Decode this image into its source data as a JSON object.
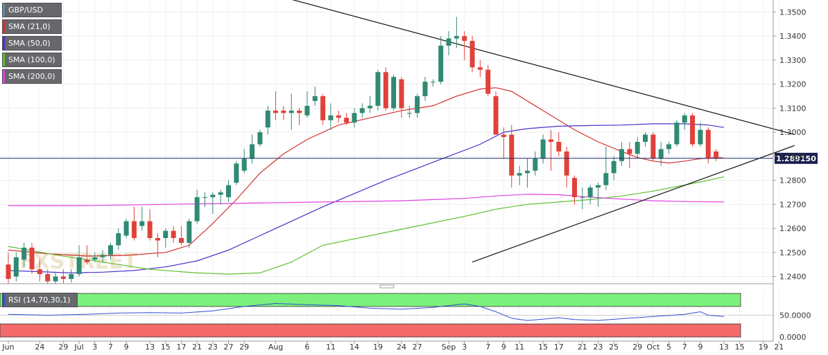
{
  "legend": [
    {
      "label": "GBP/USD",
      "color": "#5b8fa8"
    },
    {
      "label": "SMA (21,0)",
      "color": "#d32f2f"
    },
    {
      "label": "SMA (50,0)",
      "color": "#4a2fc7"
    },
    {
      "label": "SMA (100,0)",
      "color": "#5fbf2f"
    },
    {
      "label": "SMA (200,0)",
      "color": "#e040e0"
    }
  ],
  "rsi_label": "RSI (14,70,30,1)",
  "price_tag": "1.289150",
  "watermark": "FXSTREET",
  "colors": {
    "up": "#2f8a73",
    "down": "#e0413a",
    "rsi_line": "#2f4fd6",
    "overbought": "#7cf07c",
    "oversold": "#f46a6a"
  },
  "chart_data": {
    "type": "candlestick",
    "instrument": "GBP/USD",
    "timeframe": "daily",
    "ylim": [
      1.237,
      1.355
    ],
    "y_ticks": [
      "1.3500",
      "1.3400",
      "1.3300",
      "1.3200",
      "1.3100",
      "1.3000",
      "1.2900",
      "1.2800",
      "1.2700",
      "1.2600",
      "1.2500",
      "1.2400"
    ],
    "y_tick_values": [
      1.35,
      1.34,
      1.33,
      1.32,
      1.31,
      1.3,
      1.29,
      1.28,
      1.27,
      1.26,
      1.25,
      1.24
    ],
    "x_tick_labels": [
      "Jun",
      "24",
      "29",
      "Jul",
      "3",
      "7",
      "9",
      "13",
      "15",
      "17",
      "21",
      "23",
      "27",
      "29",
      "Aug",
      "6",
      "11",
      "14",
      "19",
      "24",
      "27",
      "Sep",
      "3",
      "7",
      "9",
      "11",
      "15",
      "17",
      "21",
      "23",
      "25",
      "29",
      "Oct",
      "5",
      "7",
      "9",
      "13",
      "15",
      "19",
      "21"
    ],
    "last_price": 1.28915,
    "candles": [
      {
        "o": 1.245,
        "h": 1.25,
        "l": 1.237,
        "c": 1.239
      },
      {
        "o": 1.24,
        "h": 1.25,
        "l": 1.238,
        "c": 1.248
      },
      {
        "o": 1.247,
        "h": 1.254,
        "l": 1.244,
        "c": 1.252
      },
      {
        "o": 1.252,
        "h": 1.254,
        "l": 1.241,
        "c": 1.243
      },
      {
        "o": 1.243,
        "h": 1.247,
        "l": 1.238,
        "c": 1.241
      },
      {
        "o": 1.241,
        "h": 1.243,
        "l": 1.237,
        "c": 1.238
      },
      {
        "o": 1.238,
        "h": 1.242,
        "l": 1.237,
        "c": 1.24
      },
      {
        "o": 1.24,
        "h": 1.243,
        "l": 1.237,
        "c": 1.239
      },
      {
        "o": 1.239,
        "h": 1.243,
        "l": 1.2375,
        "c": 1.241
      },
      {
        "o": 1.241,
        "h": 1.253,
        "l": 1.24,
        "c": 1.248
      },
      {
        "o": 1.247,
        "h": 1.253,
        "l": 1.245,
        "c": 1.246
      },
      {
        "o": 1.247,
        "h": 1.25,
        "l": 1.246,
        "c": 1.248
      },
      {
        "o": 1.248,
        "h": 1.251,
        "l": 1.246,
        "c": 1.249
      },
      {
        "o": 1.249,
        "h": 1.254,
        "l": 1.247,
        "c": 1.253
      },
      {
        "o": 1.253,
        "h": 1.26,
        "l": 1.251,
        "c": 1.258
      },
      {
        "o": 1.257,
        "h": 1.264,
        "l": 1.256,
        "c": 1.263
      },
      {
        "o": 1.263,
        "h": 1.269,
        "l": 1.255,
        "c": 1.256
      },
      {
        "o": 1.261,
        "h": 1.269,
        "l": 1.259,
        "c": 1.263
      },
      {
        "o": 1.263,
        "h": 1.268,
        "l": 1.255,
        "c": 1.256
      },
      {
        "o": 1.256,
        "h": 1.258,
        "l": 1.248,
        "c": 1.255
      },
      {
        "o": 1.256,
        "h": 1.26,
        "l": 1.252,
        "c": 1.259
      },
      {
        "o": 1.259,
        "h": 1.261,
        "l": 1.254,
        "c": 1.256
      },
      {
        "o": 1.256,
        "h": 1.261,
        "l": 1.253,
        "c": 1.254
      },
      {
        "o": 1.254,
        "h": 1.264,
        "l": 1.252,
        "c": 1.263
      },
      {
        "o": 1.263,
        "h": 1.276,
        "l": 1.262,
        "c": 1.273
      },
      {
        "o": 1.273,
        "h": 1.275,
        "l": 1.269,
        "c": 1.273
      },
      {
        "o": 1.273,
        "h": 1.275,
        "l": 1.266,
        "c": 1.274
      },
      {
        "o": 1.274,
        "h": 1.276,
        "l": 1.27,
        "c": 1.275
      },
      {
        "o": 1.273,
        "h": 1.28,
        "l": 1.271,
        "c": 1.278
      },
      {
        "o": 1.279,
        "h": 1.288,
        "l": 1.278,
        "c": 1.287
      },
      {
        "o": 1.284,
        "h": 1.293,
        "l": 1.283,
        "c": 1.289
      },
      {
        "o": 1.289,
        "h": 1.299,
        "l": 1.287,
        "c": 1.295
      },
      {
        "o": 1.295,
        "h": 1.301,
        "l": 1.294,
        "c": 1.3
      },
      {
        "o": 1.302,
        "h": 1.311,
        "l": 1.299,
        "c": 1.309
      },
      {
        "o": 1.309,
        "h": 1.317,
        "l": 1.305,
        "c": 1.308
      },
      {
        "o": 1.309,
        "h": 1.311,
        "l": 1.305,
        "c": 1.308
      },
      {
        "o": 1.308,
        "h": 1.316,
        "l": 1.301,
        "c": 1.309
      },
      {
        "o": 1.309,
        "h": 1.31,
        "l": 1.303,
        "c": 1.308
      },
      {
        "o": 1.307,
        "h": 1.317,
        "l": 1.306,
        "c": 1.311
      },
      {
        "o": 1.313,
        "h": 1.319,
        "l": 1.311,
        "c": 1.315
      },
      {
        "o": 1.315,
        "h": 1.316,
        "l": 1.303,
        "c": 1.305
      },
      {
        "o": 1.305,
        "h": 1.312,
        "l": 1.301,
        "c": 1.307
      },
      {
        "o": 1.307,
        "h": 1.309,
        "l": 1.304,
        "c": 1.306
      },
      {
        "o": 1.306,
        "h": 1.308,
        "l": 1.303,
        "c": 1.304
      },
      {
        "o": 1.304,
        "h": 1.31,
        "l": 1.302,
        "c": 1.308
      },
      {
        "o": 1.308,
        "h": 1.312,
        "l": 1.306,
        "c": 1.31
      },
      {
        "o": 1.31,
        "h": 1.315,
        "l": 1.308,
        "c": 1.311
      },
      {
        "o": 1.311,
        "h": 1.326,
        "l": 1.309,
        "c": 1.325
      },
      {
        "o": 1.325,
        "h": 1.327,
        "l": 1.309,
        "c": 1.31
      },
      {
        "o": 1.31,
        "h": 1.324,
        "l": 1.309,
        "c": 1.323
      },
      {
        "o": 1.322,
        "h": 1.323,
        "l": 1.306,
        "c": 1.31
      },
      {
        "o": 1.308,
        "h": 1.311,
        "l": 1.306,
        "c": 1.308
      },
      {
        "o": 1.308,
        "h": 1.316,
        "l": 1.306,
        "c": 1.315
      },
      {
        "o": 1.315,
        "h": 1.323,
        "l": 1.313,
        "c": 1.321
      },
      {
        "o": 1.321,
        "h": 1.322,
        "l": 1.319,
        "c": 1.321
      },
      {
        "o": 1.321,
        "h": 1.34,
        "l": 1.32,
        "c": 1.336
      },
      {
        "o": 1.336,
        "h": 1.342,
        "l": 1.332,
        "c": 1.339
      },
      {
        "o": 1.339,
        "h": 1.348,
        "l": 1.335,
        "c": 1.34
      },
      {
        "o": 1.34,
        "h": 1.342,
        "l": 1.33,
        "c": 1.338
      },
      {
        "o": 1.338,
        "h": 1.34,
        "l": 1.325,
        "c": 1.327
      },
      {
        "o": 1.327,
        "h": 1.33,
        "l": 1.323,
        "c": 1.326
      },
      {
        "o": 1.326,
        "h": 1.328,
        "l": 1.315,
        "c": 1.316
      },
      {
        "o": 1.315,
        "h": 1.317,
        "l": 1.299,
        "c": 1.299
      },
      {
        "o": 1.299,
        "h": 1.302,
        "l": 1.289,
        "c": 1.298
      },
      {
        "o": 1.299,
        "h": 1.303,
        "l": 1.277,
        "c": 1.282
      },
      {
        "o": 1.282,
        "h": 1.286,
        "l": 1.278,
        "c": 1.283
      },
      {
        "o": 1.283,
        "h": 1.289,
        "l": 1.277,
        "c": 1.284
      },
      {
        "o": 1.284,
        "h": 1.292,
        "l": 1.282,
        "c": 1.289
      },
      {
        "o": 1.289,
        "h": 1.299,
        "l": 1.287,
        "c": 1.297
      },
      {
        "o": 1.297,
        "h": 1.301,
        "l": 1.284,
        "c": 1.296
      },
      {
        "o": 1.296,
        "h": 1.3,
        "l": 1.29,
        "c": 1.292
      },
      {
        "o": 1.292,
        "h": 1.294,
        "l": 1.277,
        "c": 1.282
      },
      {
        "o": 1.281,
        "h": 1.282,
        "l": 1.27,
        "c": 1.273
      },
      {
        "o": 1.273,
        "h": 1.277,
        "l": 1.268,
        "c": 1.273
      },
      {
        "o": 1.273,
        "h": 1.278,
        "l": 1.27,
        "c": 1.277
      },
      {
        "o": 1.277,
        "h": 1.279,
        "l": 1.269,
        "c": 1.278
      },
      {
        "o": 1.278,
        "h": 1.294,
        "l": 1.276,
        "c": 1.283
      },
      {
        "o": 1.283,
        "h": 1.29,
        "l": 1.28,
        "c": 1.288
      },
      {
        "o": 1.288,
        "h": 1.296,
        "l": 1.286,
        "c": 1.293
      },
      {
        "o": 1.293,
        "h": 1.296,
        "l": 1.285,
        "c": 1.291
      },
      {
        "o": 1.291,
        "h": 1.298,
        "l": 1.289,
        "c": 1.296
      },
      {
        "o": 1.296,
        "h": 1.3,
        "l": 1.294,
        "c": 1.299
      },
      {
        "o": 1.299,
        "h": 1.3,
        "l": 1.288,
        "c": 1.289
      },
      {
        "o": 1.289,
        "h": 1.296,
        "l": 1.286,
        "c": 1.293
      },
      {
        "o": 1.293,
        "h": 1.296,
        "l": 1.291,
        "c": 1.295
      },
      {
        "o": 1.295,
        "h": 1.305,
        "l": 1.294,
        "c": 1.304
      },
      {
        "o": 1.304,
        "h": 1.308,
        "l": 1.301,
        "c": 1.307
      },
      {
        "o": 1.307,
        "h": 1.308,
        "l": 1.294,
        "c": 1.295
      },
      {
        "o": 1.295,
        "h": 1.304,
        "l": 1.294,
        "c": 1.301
      },
      {
        "o": 1.301,
        "h": 1.302,
        "l": 1.287,
        "c": 1.289
      },
      {
        "o": 1.292,
        "h": 1.293,
        "l": 1.288,
        "c": 1.289
      }
    ],
    "series": [
      {
        "name": "SMA (21,0)",
        "values": [
          [
            0,
            1.251
          ],
          [
            5,
            1.2495
          ],
          [
            10,
            1.2485
          ],
          [
            15,
            1.2488
          ],
          [
            20,
            1.25
          ],
          [
            23,
            1.253
          ],
          [
            26,
            1.262
          ],
          [
            29,
            1.272
          ],
          [
            32,
            1.283
          ],
          [
            35,
            1.291
          ],
          [
            38,
            1.297
          ],
          [
            42,
            1.303
          ],
          [
            46,
            1.306
          ],
          [
            50,
            1.309
          ],
          [
            54,
            1.311
          ],
          [
            57,
            1.315
          ],
          [
            60,
            1.318
          ],
          [
            62,
            1.3185
          ],
          [
            64,
            1.317
          ],
          [
            66,
            1.313
          ],
          [
            69,
            1.307
          ],
          [
            72,
            1.301
          ],
          [
            75,
            1.296
          ],
          [
            78,
            1.292
          ],
          [
            80,
            1.2895
          ],
          [
            82,
            1.288
          ],
          [
            84,
            1.2872
          ],
          [
            86,
            1.288
          ],
          [
            88,
            1.289
          ],
          [
            90,
            1.2895
          ],
          [
            91,
            1.2893
          ]
        ]
      },
      {
        "name": "SMA (50,0)",
        "values": [
          [
            0,
            1.2425
          ],
          [
            4,
            1.242
          ],
          [
            8,
            1.2415
          ],
          [
            12,
            1.2418
          ],
          [
            16,
            1.2425
          ],
          [
            20,
            1.244
          ],
          [
            24,
            1.2465
          ],
          [
            28,
            1.251
          ],
          [
            32,
            1.257
          ],
          [
            36,
            1.263
          ],
          [
            40,
            1.269
          ],
          [
            44,
            1.2745
          ],
          [
            48,
            1.28
          ],
          [
            52,
            1.285
          ],
          [
            56,
            1.29
          ],
          [
            60,
            1.295
          ],
          [
            63,
            1.3
          ],
          [
            66,
            1.3015
          ],
          [
            70,
            1.3025
          ],
          [
            74,
            1.3028
          ],
          [
            78,
            1.303
          ],
          [
            82,
            1.3035
          ],
          [
            86,
            1.3035
          ],
          [
            89,
            1.303
          ],
          [
            91,
            1.302
          ]
        ]
      },
      {
        "name": "SMA (100,0)",
        "values": [
          [
            0,
            1.2525
          ],
          [
            6,
            1.249
          ],
          [
            12,
            1.246
          ],
          [
            18,
            1.243
          ],
          [
            24,
            1.2415
          ],
          [
            28,
            1.241
          ],
          [
            32,
            1.2415
          ],
          [
            36,
            1.246
          ],
          [
            40,
            1.253
          ],
          [
            46,
            1.257
          ],
          [
            52,
            1.261
          ],
          [
            58,
            1.265
          ],
          [
            62,
            1.268
          ],
          [
            66,
            1.27
          ],
          [
            70,
            1.271
          ],
          [
            74,
            1.272
          ],
          [
            78,
            1.2735
          ],
          [
            82,
            1.2755
          ],
          [
            86,
            1.278
          ],
          [
            89,
            1.28
          ],
          [
            91,
            1.2815
          ]
        ]
      },
      {
        "name": "SMA (200,0)",
        "values": [
          [
            0,
            1.2695
          ],
          [
            10,
            1.2695
          ],
          [
            20,
            1.27
          ],
          [
            30,
            1.2705
          ],
          [
            40,
            1.271
          ],
          [
            50,
            1.2715
          ],
          [
            58,
            1.2725
          ],
          [
            62,
            1.2735
          ],
          [
            66,
            1.2742
          ],
          [
            70,
            1.274
          ],
          [
            74,
            1.273
          ],
          [
            78,
            1.2722
          ],
          [
            82,
            1.2715
          ],
          [
            86,
            1.2712
          ],
          [
            91,
            1.271
          ]
        ]
      }
    ],
    "trendlines": [
      {
        "from": [
          34,
          1.357
        ],
        "to": [
          100,
          1.299
        ]
      },
      {
        "from": [
          59,
          1.246
        ],
        "to": [
          100,
          1.2945
        ]
      }
    ],
    "rsi": {
      "label": "RSI (14,70,30,1)",
      "ylim": [
        0,
        100
      ],
      "overbought": 70,
      "oversold": 30,
      "y_ticks": [
        "50.0000",
        "0.0000"
      ],
      "y_tick_values": [
        50,
        0
      ],
      "values": [
        [
          0,
          52
        ],
        [
          5,
          50
        ],
        [
          10,
          52
        ],
        [
          14,
          55
        ],
        [
          18,
          56
        ],
        [
          22,
          55
        ],
        [
          26,
          60
        ],
        [
          30,
          70
        ],
        [
          34,
          77
        ],
        [
          38,
          74
        ],
        [
          42,
          72
        ],
        [
          46,
          66
        ],
        [
          50,
          64
        ],
        [
          54,
          68
        ],
        [
          58,
          76
        ],
        [
          60,
          70
        ],
        [
          62,
          58
        ],
        [
          64,
          43
        ],
        [
          66,
          38
        ],
        [
          70,
          44
        ],
        [
          72,
          40
        ],
        [
          75,
          38
        ],
        [
          78,
          42
        ],
        [
          82,
          47
        ],
        [
          86,
          52
        ],
        [
          88,
          58
        ],
        [
          89,
          50
        ],
        [
          91,
          47
        ]
      ]
    }
  }
}
